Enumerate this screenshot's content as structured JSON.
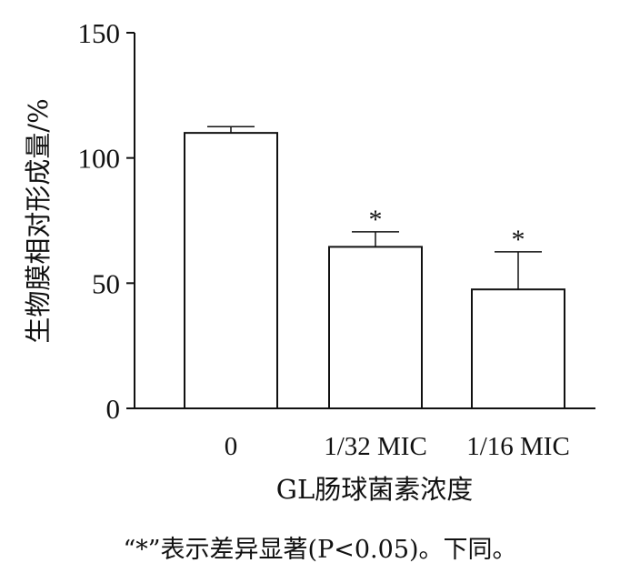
{
  "chart_data": {
    "type": "bar",
    "categories": [
      "0",
      "1/32 MIC",
      "1/16 MIC"
    ],
    "values": [
      110,
      64.5,
      47.5
    ],
    "error_upper": [
      112.5,
      70.5,
      62.5
    ],
    "significance": [
      "",
      "*",
      "*"
    ],
    "xlabel": "GL肠球菌素浓度",
    "ylabel": "生物膜相对形成量/%",
    "ylim": [
      0,
      150
    ],
    "yticks": [
      0,
      50,
      100,
      150
    ],
    "grid": false,
    "bar_fill": "#ffffff",
    "bar_edge": "#111111"
  },
  "caption": "“*”表示差异显著(P<0.05)。下同。"
}
